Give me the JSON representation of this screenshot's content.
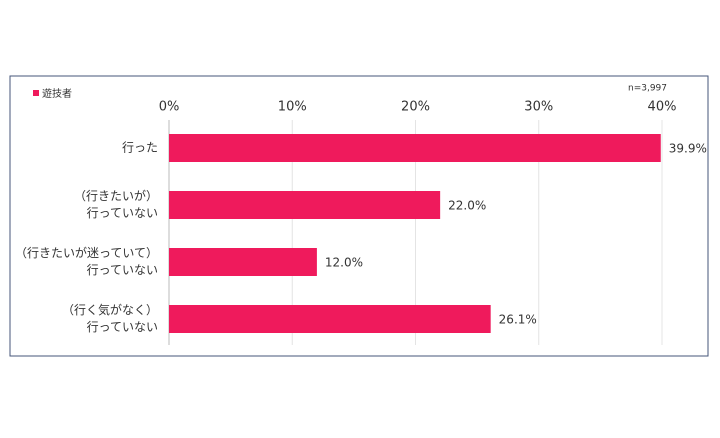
{
  "chart_data": {
    "type": "hbar",
    "categories": [
      "行った",
      "（行きたいが）\n行っていない",
      "（行きたいが迷っていて）\n行っていない",
      "（行く気がなく）\n行っていない"
    ],
    "series": [
      {
        "name": "遊技者",
        "color": "#ef1a5c",
        "values": [
          39.9,
          22.0,
          12.0,
          26.1
        ],
        "value_labels": [
          "39.9%",
          "22.0%",
          "12.0%",
          "26.1%"
        ]
      }
    ],
    "annotation": "n=3,997",
    "xlim": [
      0,
      40
    ],
    "xticks": [
      {
        "value": 0,
        "label": "0%"
      },
      {
        "value": 10,
        "label": "10%"
      },
      {
        "value": 20,
        "label": "20%"
      },
      {
        "value": 30,
        "label": "30%"
      },
      {
        "value": 40,
        "label": "40%"
      }
    ],
    "grid": true
  }
}
